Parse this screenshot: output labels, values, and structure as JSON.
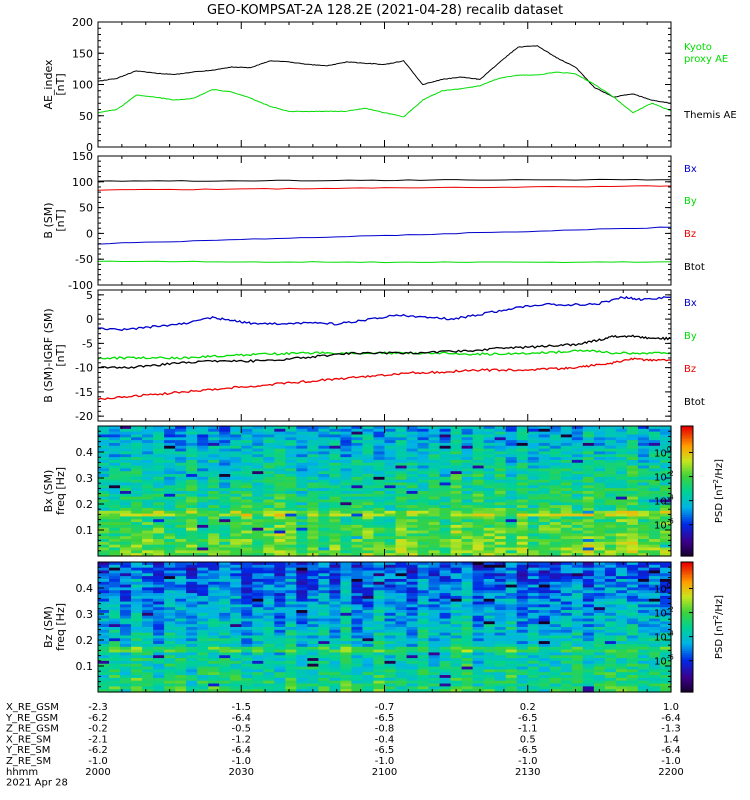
{
  "title": "GEO-KOMPSAT-2A 128.2E (2021-04-28) recalib dataset",
  "colors": {
    "black": "#000000",
    "green": "#00dd00",
    "red": "#ee0000",
    "blue": "#0000cc"
  },
  "chart_data": [
    {
      "type": "line",
      "ylabel": "AE_index [nT]",
      "ylabel_lines": [
        "AE_index",
        "[nT]"
      ],
      "ylim": [
        0,
        200
      ],
      "yticks": [
        0,
        50,
        100,
        150,
        200
      ],
      "xlim": [
        0,
        120
      ],
      "x_unit": "minutes after 2000 UT",
      "legend": [
        {
          "lines": [
            "Kyoto",
            "proxy AE"
          ],
          "color": "#00dd00"
        },
        {
          "lines": [
            "Themis AE"
          ],
          "color": "#000000"
        }
      ],
      "series": [
        {
          "name": "Themis AE",
          "color": "#000000",
          "x": [
            0,
            4,
            8,
            12,
            16,
            20,
            24,
            28,
            32,
            36,
            40,
            44,
            48,
            52,
            56,
            60,
            64,
            68,
            72,
            74,
            76,
            78,
            80,
            84,
            88,
            92,
            96,
            100,
            104,
            108,
            112,
            116,
            120
          ],
          "y": [
            105,
            110,
            122,
            118,
            116,
            120,
            123,
            128,
            127,
            138,
            136,
            132,
            130,
            136,
            134,
            132,
            138,
            100,
            108,
            110,
            112,
            110,
            108,
            135,
            160,
            162,
            143,
            128,
            95,
            80,
            85,
            75,
            70
          ]
        },
        {
          "name": "Kyoto proxy AE",
          "color": "#00dd00",
          "x": [
            0,
            4,
            8,
            12,
            16,
            20,
            24,
            28,
            32,
            36,
            40,
            44,
            48,
            52,
            56,
            60,
            64,
            68,
            72,
            76,
            80,
            84,
            88,
            92,
            96,
            100,
            104,
            108,
            112,
            116,
            120
          ],
          "y": [
            55,
            60,
            83,
            80,
            75,
            78,
            92,
            88,
            78,
            65,
            57,
            57,
            57,
            57,
            62,
            55,
            48,
            75,
            90,
            93,
            98,
            110,
            115,
            115,
            120,
            117,
            100,
            80,
            55,
            70,
            58
          ]
        }
      ]
    },
    {
      "type": "line",
      "ylabel": "B (SM) [nT]",
      "ylabel_lines": [
        "B (SM)",
        "[nT]"
      ],
      "ylim": [
        -100,
        150
      ],
      "yticks": [
        -100,
        -50,
        0,
        50,
        100,
        150
      ],
      "xlim": [
        0,
        120
      ],
      "legend": [
        {
          "lines": [
            "Bx"
          ],
          "color": "#0000cc"
        },
        {
          "lines": [
            "By"
          ],
          "color": "#00dd00"
        },
        {
          "lines": [
            "Bz"
          ],
          "color": "#ee0000"
        },
        {
          "lines": [
            "Btot"
          ],
          "color": "#000000"
        }
      ],
      "series": [
        {
          "name": "Btot",
          "color": "#000000",
          "x": [
            0,
            30,
            60,
            90,
            120
          ],
          "y": [
            101,
            102,
            103,
            104,
            104
          ]
        },
        {
          "name": "Bz",
          "color": "#ee0000",
          "x": [
            0,
            30,
            60,
            90,
            120
          ],
          "y": [
            84,
            86,
            88,
            90,
            92
          ]
        },
        {
          "name": "Bx",
          "color": "#0000cc",
          "x": [
            0,
            30,
            60,
            90,
            120
          ],
          "y": [
            -20,
            -12,
            -4,
            4,
            12
          ]
        },
        {
          "name": "By",
          "color": "#00dd00",
          "x": [
            0,
            30,
            60,
            90,
            120
          ],
          "y": [
            -54,
            -55,
            -56,
            -56,
            -55
          ]
        }
      ]
    },
    {
      "type": "line",
      "ylabel": "B (SM)-IGRF (SM) [nT]",
      "ylabel_lines": [
        "B (SM)-IGRF (SM)",
        "[nT]"
      ],
      "ylim": [
        -21,
        6
      ],
      "yticks": [
        -20,
        -15,
        -10,
        -5,
        0,
        5
      ],
      "xlim": [
        0,
        120
      ],
      "legend": [
        {
          "lines": [
            "Bx"
          ],
          "color": "#0000cc"
        },
        {
          "lines": [
            "By"
          ],
          "color": "#00dd00"
        },
        {
          "lines": [
            "Bz"
          ],
          "color": "#ee0000"
        },
        {
          "lines": [
            "Btot"
          ],
          "color": "#000000"
        }
      ],
      "series": [
        {
          "name": "Bx",
          "color": "#0000cc",
          "x": [
            0,
            6,
            12,
            18,
            24,
            28,
            32,
            38,
            44,
            50,
            56,
            62,
            68,
            74,
            80,
            86,
            92,
            98,
            104,
            110,
            114,
            120
          ],
          "y": [
            -2,
            -2.2,
            -1.5,
            -1,
            0.3,
            -0.3,
            -0.8,
            -1,
            -0.8,
            -1,
            -0.2,
            0.8,
            0.5,
            0,
            1,
            2,
            3,
            3,
            3,
            4.5,
            4,
            4.5
          ]
        },
        {
          "name": "By",
          "color": "#00dd00",
          "x": [
            0,
            6,
            12,
            18,
            24,
            30,
            36,
            42,
            48,
            54,
            60,
            66,
            72,
            78,
            84,
            90,
            96,
            102,
            108,
            114,
            120
          ],
          "y": [
            -8,
            -8,
            -8,
            -8,
            -7.7,
            -7.4,
            -7.2,
            -7,
            -7,
            -7,
            -7,
            -7,
            -7,
            -7.2,
            -7.2,
            -7,
            -6.8,
            -6.5,
            -7,
            -7,
            -7
          ]
        },
        {
          "name": "Btot",
          "color": "#000000",
          "x": [
            0,
            6,
            12,
            18,
            24,
            30,
            36,
            42,
            48,
            54,
            60,
            66,
            72,
            78,
            84,
            90,
            96,
            100,
            104,
            108,
            112,
            116,
            120
          ],
          "y": [
            -10,
            -10,
            -9.5,
            -9,
            -8.7,
            -8.7,
            -8.5,
            -8,
            -7.5,
            -7,
            -7,
            -7,
            -6.7,
            -6.5,
            -6,
            -5.8,
            -5.5,
            -5.2,
            -4.5,
            -3.6,
            -3.5,
            -4,
            -4
          ]
        },
        {
          "name": "Bz",
          "color": "#ee0000",
          "x": [
            0,
            6,
            12,
            18,
            24,
            30,
            36,
            42,
            48,
            54,
            60,
            66,
            72,
            78,
            84,
            90,
            96,
            100,
            104,
            108,
            112,
            116,
            120
          ],
          "y": [
            -16.5,
            -16,
            -15.5,
            -15,
            -14.5,
            -14,
            -13.5,
            -13,
            -12.5,
            -12,
            -11.5,
            -11,
            -11,
            -10.5,
            -10.5,
            -10.5,
            -10.2,
            -10,
            -9.5,
            -9,
            -8.2,
            -8.5,
            -8.5
          ]
        }
      ]
    },
    {
      "type": "heatmap",
      "title": "Bx (SM)",
      "ylabel": "freq [Hz]",
      "ylabel_lines": [
        "Bx (SM)",
        "freq [Hz]"
      ],
      "ylim": [
        0,
        0.5
      ],
      "yticks": [
        0.1,
        0.2,
        0.3,
        0.4
      ],
      "xlim": [
        0,
        120
      ],
      "colorbar": {
        "label": "PSD [nT²/Hz]",
        "label_main": "PSD [nT",
        "label_sup": "2",
        "label_end": "/Hz]",
        "scale": "log",
        "ticks": [
          {
            "base": "10",
            "exp": "0"
          },
          {
            "base": "10",
            "exp": "-2"
          },
          {
            "base": "10",
            "exp": "-4"
          },
          {
            "base": "10",
            "exp": "-6"
          }
        ]
      },
      "seed": 7,
      "bias": 0.52
    },
    {
      "type": "heatmap",
      "title": "Bz (SM)",
      "ylabel": "freq [Hz]",
      "ylabel_lines": [
        "Bz (SM)",
        "freq [Hz]"
      ],
      "ylim": [
        0,
        0.5
      ],
      "yticks": [
        0.1,
        0.2,
        0.3,
        0.4
      ],
      "xlim": [
        0,
        120
      ],
      "colorbar": {
        "label": "PSD [nT²/Hz]",
        "label_main": "PSD [nT",
        "label_sup": "2",
        "label_end": "/Hz]",
        "scale": "log",
        "ticks": [
          {
            "base": "10",
            "exp": "0"
          },
          {
            "base": "10",
            "exp": "-2"
          },
          {
            "base": "10",
            "exp": "-4"
          },
          {
            "base": "10",
            "exp": "-6"
          }
        ]
      },
      "seed": 19,
      "bias": 0.42
    }
  ],
  "footer": {
    "rows": [
      {
        "label": "X_RE_GSM",
        "values": [
          "-2.3",
          "-1.5",
          "-0.7",
          "0.2",
          "1.0"
        ]
      },
      {
        "label": "Y_RE_GSM",
        "values": [
          "-6.2",
          "-6.4",
          "-6.5",
          "-6.5",
          "-6.4"
        ]
      },
      {
        "label": "Z_RE_GSM",
        "values": [
          "-0.2",
          "-0.5",
          "-0.8",
          "-1.1",
          "-1.3"
        ]
      },
      {
        "label": "X_RE_SM",
        "values": [
          "-2.1",
          "-1.2",
          "-0.4",
          "0.5",
          "1.4"
        ]
      },
      {
        "label": "Y_RE_SM",
        "values": [
          "-6.2",
          "-6.4",
          "-6.5",
          "-6.5",
          "-6.4"
        ]
      },
      {
        "label": "Z_RE_SM",
        "values": [
          "-1.0",
          "-1.0",
          "-1.0",
          "-1.0",
          "-1.0"
        ]
      },
      {
        "label": "hhmm",
        "values": [
          "2000",
          "2030",
          "2100",
          "2130",
          "2200"
        ]
      }
    ],
    "date": "2021 Apr 28"
  }
}
